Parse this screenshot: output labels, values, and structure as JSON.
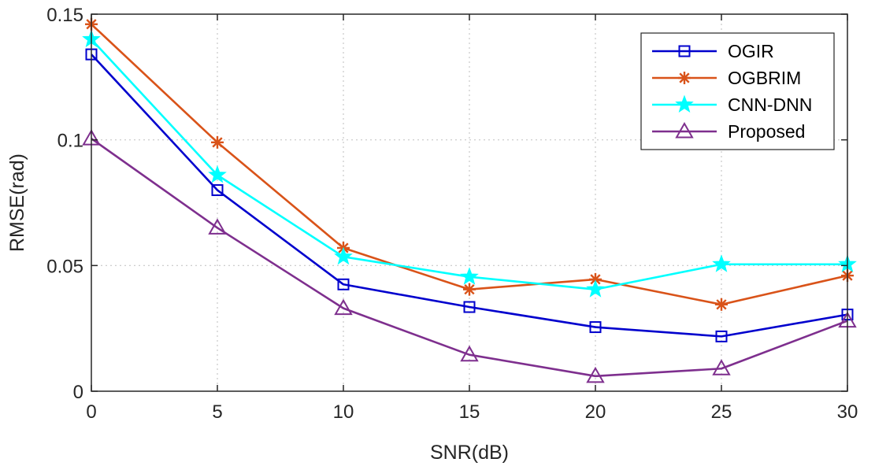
{
  "chart_data": {
    "type": "line",
    "title": "",
    "xlabel": "SNR(dB)",
    "ylabel": "RMSE(rad)",
    "x": [
      0,
      5,
      10,
      15,
      20,
      25,
      30
    ],
    "xlim": [
      0,
      30
    ],
    "ylim": [
      0,
      0.15
    ],
    "xticks": [
      0,
      5,
      10,
      15,
      20,
      25,
      30
    ],
    "xtick_labels": [
      "0",
      "5",
      "10",
      "15",
      "20",
      "25",
      "30"
    ],
    "yticks": [
      0,
      0.05,
      0.1,
      0.15
    ],
    "ytick_labels": [
      "0",
      "0.05",
      "0.1",
      "0.15"
    ],
    "grid": true,
    "legend_position": "top-right",
    "series": [
      {
        "name": "OGIR",
        "color": "#0000CD",
        "marker": "square",
        "values": [
          0.134,
          0.08,
          0.0425,
          0.0335,
          0.0255,
          0.0218,
          0.0305
        ]
      },
      {
        "name": "OGBRIM",
        "color": "#D95319",
        "marker": "asterisk",
        "values": [
          0.146,
          0.099,
          0.057,
          0.0405,
          0.0445,
          0.0345,
          0.046
        ]
      },
      {
        "name": "CNN-DNN",
        "color": "#00FFFF",
        "marker": "pentagram",
        "values": [
          0.14,
          0.086,
          0.0535,
          0.0455,
          0.0405,
          0.0505,
          0.0505
        ]
      },
      {
        "name": "Proposed",
        "color": "#7E2F8E",
        "marker": "triangle",
        "values": [
          0.1005,
          0.065,
          0.033,
          0.0145,
          0.006,
          0.009,
          0.028
        ]
      }
    ]
  }
}
